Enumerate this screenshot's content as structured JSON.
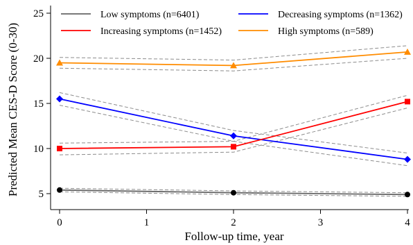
{
  "chart_data": {
    "type": "line",
    "xlabel": "Follow-up time, year",
    "ylabel": "Predicted Mean CES-D Score (0-30)",
    "xlim": [
      0,
      4
    ],
    "ylim": [
      4,
      25.5
    ],
    "x_ticks": [
      0,
      1,
      2,
      3,
      4
    ],
    "y_ticks": [
      5,
      10,
      15,
      20,
      25
    ],
    "grid": false,
    "legend_position": "top",
    "x": [
      0,
      2,
      4
    ],
    "series": [
      {
        "name": "Low symptoms (n=6401)",
        "color": "#000000",
        "line_color": "#666666",
        "marker": "circle",
        "values": [
          5.4,
          5.1,
          4.9
        ],
        "ci_lower": [
          5.2,
          4.9,
          4.7
        ],
        "ci_upper": [
          5.6,
          5.3,
          5.1
        ]
      },
      {
        "name": "Decreasing symptoms (n=1362)",
        "color": "#0000ff",
        "line_color": "#0000ff",
        "marker": "diamond",
        "values": [
          15.5,
          11.4,
          8.8
        ],
        "ci_lower": [
          14.8,
          10.8,
          8.1
        ],
        "ci_upper": [
          16.2,
          12.0,
          9.5
        ]
      },
      {
        "name": "Increasing symptoms (n=1452)",
        "color": "#ff0000",
        "line_color": "#ff0000",
        "marker": "square",
        "values": [
          10.0,
          10.2,
          15.2
        ],
        "ci_lower": [
          9.3,
          9.6,
          14.5
        ],
        "ci_upper": [
          10.6,
          10.8,
          15.9
        ]
      },
      {
        "name": "High symptoms (n=589)",
        "color": "#ff8c00",
        "line_color": "#ff8c00",
        "marker": "triangle",
        "values": [
          19.5,
          19.2,
          20.7
        ],
        "ci_lower": [
          18.9,
          18.6,
          20.0
        ],
        "ci_upper": [
          20.1,
          19.8,
          21.4
        ]
      }
    ]
  }
}
